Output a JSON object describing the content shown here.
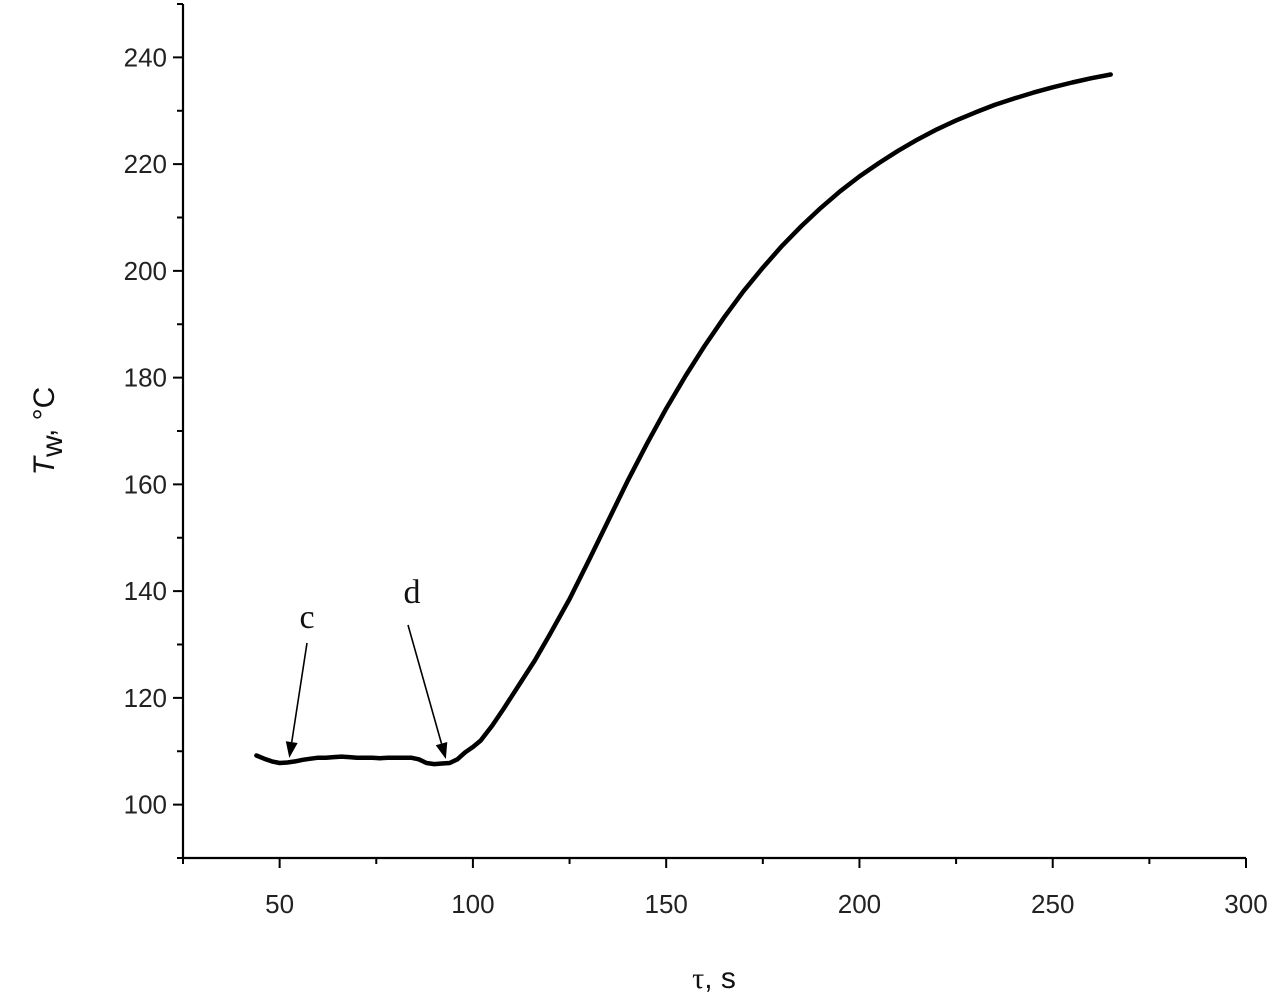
{
  "chart_data": {
    "type": "line",
    "title": "",
    "xlabel": {
      "symbol": "τ",
      "unit": "s"
    },
    "ylabel": {
      "symbol": "T",
      "subscript": "w",
      "unit": "°C"
    },
    "xlim": [
      25,
      300
    ],
    "ylim": [
      90,
      250
    ],
    "xticks": [
      50,
      100,
      150,
      200,
      250,
      300
    ],
    "xticks_minor": [
      25,
      75,
      125,
      175,
      225,
      275
    ],
    "yticks": [
      100,
      120,
      140,
      160,
      180,
      200,
      220,
      240
    ],
    "yticks_minor": [
      90,
      110,
      130,
      150,
      170,
      190,
      210,
      230,
      250
    ],
    "grid": false,
    "legend": "none",
    "series": [
      {
        "color": "#000000",
        "x": [
          44,
          46,
          48,
          50,
          52,
          54,
          56,
          58,
          60,
          62,
          64,
          66,
          68,
          70,
          72,
          74,
          76,
          78,
          80,
          82,
          84,
          86,
          88,
          90,
          92,
          94,
          96,
          98,
          100,
          102,
          105,
          108,
          112,
          116,
          120,
          125,
          130,
          135,
          140,
          145,
          150,
          155,
          160,
          165,
          170,
          175,
          180,
          185,
          190,
          195,
          200,
          205,
          210,
          215,
          220,
          225,
          230,
          235,
          240,
          245,
          250,
          255,
          260,
          265
        ],
        "y": [
          109.2,
          108.6,
          108.1,
          107.8,
          107.9,
          108.1,
          108.4,
          108.6,
          108.8,
          108.8,
          108.9,
          109.0,
          108.9,
          108.8,
          108.8,
          108.8,
          108.7,
          108.8,
          108.8,
          108.8,
          108.8,
          108.5,
          107.8,
          107.6,
          107.7,
          107.8,
          108.5,
          109.8,
          110.8,
          112.0,
          114.8,
          118.0,
          122.5,
          127.0,
          132.0,
          138.5,
          145.8,
          153.2,
          160.6,
          167.6,
          174.2,
          180.3,
          186.0,
          191.3,
          196.2,
          200.6,
          204.7,
          208.4,
          211.8,
          214.9,
          217.7,
          220.2,
          222.5,
          224.6,
          226.5,
          228.2,
          229.7,
          231.1,
          232.3,
          233.4,
          234.4,
          235.3,
          236.1,
          236.8
        ]
      }
    ],
    "annotations": [
      {
        "text": "c",
        "x": 52.5,
        "y": 108
      },
      {
        "text": "d",
        "x": 93,
        "y": 107.8
      }
    ]
  }
}
